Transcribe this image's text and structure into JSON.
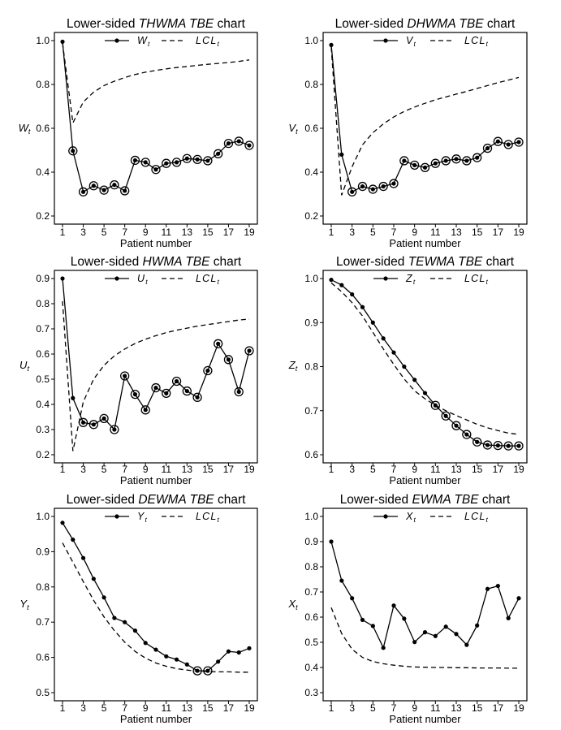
{
  "chart_data": [
    {
      "type": "line",
      "title_prefix": "Lower-sided ",
      "title_italic": "THWMA TBE",
      "title_suffix": " chart",
      "ylabel": "W",
      "ylabel_sub": "t",
      "xlabel": "Patient number",
      "xlim": [
        1,
        19
      ],
      "ylim": [
        0.2,
        1.0
      ],
      "yticks": [
        0.2,
        0.4,
        0.6,
        0.8,
        1.0
      ],
      "ytick_labels": [
        "0.2",
        "0.4",
        "0.6",
        "0.8",
        "1.0"
      ],
      "xticks": [
        1,
        3,
        5,
        7,
        9,
        11,
        13,
        15,
        17,
        19
      ],
      "xtick_labels": [
        "1",
        "3",
        "5",
        "7",
        "9",
        "11",
        "13",
        "15",
        "17",
        "19"
      ],
      "legend": {
        "stat_label": "W",
        "stat_sub": "t",
        "limit_label": "LCL",
        "limit_sub": "t"
      },
      "x": [
        1,
        2,
        3,
        4,
        5,
        6,
        7,
        8,
        9,
        10,
        11,
        12,
        13,
        14,
        15,
        16,
        17,
        18,
        19
      ],
      "statistic": [
        0.995,
        0.497,
        0.31,
        0.338,
        0.318,
        0.342,
        0.315,
        0.454,
        0.445,
        0.412,
        0.44,
        0.445,
        0.462,
        0.458,
        0.452,
        0.484,
        0.531,
        0.541,
        0.522
      ],
      "lcl": [
        0.99,
        0.625,
        0.72,
        0.765,
        0.795,
        0.815,
        0.832,
        0.845,
        0.856,
        0.864,
        0.871,
        0.877,
        0.882,
        0.887,
        0.892,
        0.896,
        0.9,
        0.905,
        0.912
      ],
      "signals": [
        2,
        3,
        4,
        5,
        6,
        7,
        8,
        9,
        10,
        11,
        12,
        13,
        14,
        15,
        16,
        17,
        18,
        19
      ]
    },
    {
      "type": "line",
      "title_prefix": "Lower-sided ",
      "title_italic": "DHWMA TBE",
      "title_suffix": " chart",
      "ylabel": "V",
      "ylabel_sub": "t",
      "xlabel": "Patient number",
      "xlim": [
        1,
        19
      ],
      "ylim": [
        0.2,
        1.0
      ],
      "yticks": [
        0.2,
        0.4,
        0.6,
        0.8,
        1.0
      ],
      "ytick_labels": [
        "0.2",
        "0.4",
        "0.6",
        "0.8",
        "1.0"
      ],
      "xticks": [
        1,
        3,
        5,
        7,
        9,
        11,
        13,
        15,
        17,
        19
      ],
      "xtick_labels": [
        "1",
        "3",
        "5",
        "7",
        "9",
        "11",
        "13",
        "15",
        "17",
        "19"
      ],
      "legend": {
        "stat_label": "V",
        "stat_sub": "t",
        "limit_label": "LCL",
        "limit_sub": "t"
      },
      "x": [
        1,
        2,
        3,
        4,
        5,
        6,
        7,
        8,
        9,
        10,
        11,
        12,
        13,
        14,
        15,
        16,
        17,
        18,
        19
      ],
      "statistic": [
        0.98,
        0.48,
        0.31,
        0.335,
        0.322,
        0.335,
        0.348,
        0.452,
        0.432,
        0.421,
        0.44,
        0.452,
        0.46,
        0.452,
        0.466,
        0.509,
        0.54,
        0.526,
        0.537
      ],
      "lcl": [
        0.97,
        0.295,
        0.425,
        0.525,
        0.58,
        0.62,
        0.652,
        0.677,
        0.697,
        0.714,
        0.73,
        0.743,
        0.756,
        0.768,
        0.782,
        0.795,
        0.808,
        0.82,
        0.832
      ],
      "signals": [
        3,
        4,
        5,
        6,
        7,
        8,
        9,
        10,
        11,
        12,
        13,
        14,
        15,
        16,
        17,
        18,
        19
      ]
    },
    {
      "type": "line",
      "title_prefix": "Lower-sided ",
      "title_italic": "HWMA TBE",
      "title_suffix": " chart",
      "ylabel": "U",
      "ylabel_sub": "t",
      "xlabel": "Patient number",
      "xlim": [
        1,
        19
      ],
      "ylim": [
        0.2,
        0.9
      ],
      "yticks": [
        0.2,
        0.3,
        0.4,
        0.5,
        0.6,
        0.7,
        0.8,
        0.9
      ],
      "ytick_labels": [
        "0.2",
        "0.3",
        "0.4",
        "0.5",
        "0.6",
        "0.7",
        "0.8",
        "0.9"
      ],
      "xticks": [
        1,
        3,
        5,
        7,
        9,
        11,
        13,
        15,
        17,
        19
      ],
      "xtick_labels": [
        "1",
        "3",
        "5",
        "7",
        "9",
        "11",
        "13",
        "15",
        "17",
        "19"
      ],
      "legend": {
        "stat_label": "U",
        "stat_sub": "t",
        "limit_label": "LCL",
        "limit_sub": "t"
      },
      "x": [
        1,
        2,
        3,
        4,
        5,
        6,
        7,
        8,
        9,
        10,
        11,
        12,
        13,
        14,
        15,
        16,
        17,
        18,
        19
      ],
      "statistic": [
        0.9,
        0.425,
        0.328,
        0.32,
        0.344,
        0.3,
        0.513,
        0.44,
        0.378,
        0.466,
        0.444,
        0.492,
        0.453,
        0.428,
        0.534,
        0.641,
        0.578,
        0.45,
        0.613
      ],
      "lcl": [
        0.81,
        0.215,
        0.41,
        0.5,
        0.555,
        0.593,
        0.62,
        0.642,
        0.659,
        0.673,
        0.685,
        0.695,
        0.703,
        0.711,
        0.717,
        0.723,
        0.729,
        0.735,
        0.739
      ],
      "signals": [
        3,
        4,
        5,
        6,
        7,
        8,
        9,
        10,
        11,
        12,
        13,
        14,
        15,
        16,
        17,
        18,
        19
      ]
    },
    {
      "type": "line",
      "title_prefix": "Lower-sided ",
      "title_italic": "TEWMA TBE",
      "title_suffix": " chart",
      "ylabel": "Z",
      "ylabel_sub": "t",
      "xlabel": "Patient number",
      "xlim": [
        1,
        19
      ],
      "ylim": [
        0.6,
        1.0
      ],
      "yticks": [
        0.6,
        0.7,
        0.8,
        0.9,
        1.0
      ],
      "ytick_labels": [
        "0.6",
        "0.7",
        "0.8",
        "0.9",
        "1.0"
      ],
      "xticks": [
        1,
        3,
        5,
        7,
        9,
        11,
        13,
        15,
        17,
        19
      ],
      "xtick_labels": [
        "1",
        "3",
        "5",
        "7",
        "9",
        "11",
        "13",
        "15",
        "17",
        "19"
      ],
      "legend": {
        "stat_label": "Z",
        "stat_sub": "t",
        "limit_label": "LCL",
        "limit_sub": "t"
      },
      "x": [
        1,
        2,
        3,
        4,
        5,
        6,
        7,
        8,
        9,
        10,
        11,
        12,
        13,
        14,
        15,
        16,
        17,
        18,
        19
      ],
      "statistic": [
        0.997,
        0.985,
        0.964,
        0.935,
        0.9,
        0.864,
        0.832,
        0.8,
        0.77,
        0.74,
        0.712,
        0.688,
        0.666,
        0.646,
        0.629,
        0.622,
        0.621,
        0.62,
        0.62
      ],
      "lcl": [
        0.99,
        0.97,
        0.945,
        0.915,
        0.878,
        0.84,
        0.805,
        0.772,
        0.745,
        0.727,
        0.712,
        0.7,
        0.689,
        0.679,
        0.669,
        0.661,
        0.655,
        0.649,
        0.646
      ],
      "signals": [
        11,
        12,
        13,
        14,
        15,
        16,
        17,
        18,
        19
      ]
    },
    {
      "type": "line",
      "title_prefix": "Lower-sided ",
      "title_italic": "DEWMA TBE",
      "title_suffix": " chart",
      "ylabel": "Y",
      "ylabel_sub": "t",
      "xlabel": "Patient number",
      "xlim": [
        1,
        19
      ],
      "ylim": [
        0.5,
        1.0
      ],
      "yticks": [
        0.5,
        0.6,
        0.7,
        0.8,
        0.9,
        1.0
      ],
      "ytick_labels": [
        "0.5",
        "0.6",
        "0.7",
        "0.8",
        "0.9",
        "1.0"
      ],
      "xticks": [
        1,
        3,
        5,
        7,
        9,
        11,
        13,
        15,
        17,
        19
      ],
      "xtick_labels": [
        "1",
        "3",
        "5",
        "7",
        "9",
        "11",
        "13",
        "15",
        "17",
        "19"
      ],
      "legend": {
        "stat_label": "Y",
        "stat_sub": "t",
        "limit_label": "LCL",
        "limit_sub": "t"
      },
      "x": [
        1,
        2,
        3,
        4,
        5,
        6,
        7,
        8,
        9,
        10,
        11,
        12,
        13,
        14,
        15,
        16,
        17,
        18,
        19
      ],
      "statistic": [
        0.982,
        0.934,
        0.882,
        0.823,
        0.77,
        0.712,
        0.7,
        0.676,
        0.641,
        0.622,
        0.603,
        0.594,
        0.58,
        0.562,
        0.562,
        0.588,
        0.617,
        0.614,
        0.626
      ],
      "lcl": [
        0.925,
        0.87,
        0.815,
        0.762,
        0.715,
        0.676,
        0.643,
        0.617,
        0.598,
        0.584,
        0.575,
        0.568,
        0.564,
        0.561,
        0.56,
        0.559,
        0.559,
        0.558,
        0.558
      ],
      "signals": [
        14,
        15
      ]
    },
    {
      "type": "line",
      "title_prefix": "Lower-sided ",
      "title_italic": "EWMA TBE",
      "title_suffix": " chart",
      "ylabel": "X",
      "ylabel_sub": "t",
      "xlabel": "Patient number",
      "xlim": [
        1,
        19
      ],
      "ylim": [
        0.3,
        1.0
      ],
      "yticks": [
        0.3,
        0.4,
        0.5,
        0.6,
        0.7,
        0.8,
        0.9,
        1.0
      ],
      "ytick_labels": [
        "0.3",
        "0.4",
        "0.5",
        "0.6",
        "0.7",
        "0.8",
        "0.9",
        "1.0"
      ],
      "xticks": [
        1,
        3,
        5,
        7,
        9,
        11,
        13,
        15,
        17,
        19
      ],
      "xtick_labels": [
        "1",
        "3",
        "5",
        "7",
        "9",
        "11",
        "13",
        "15",
        "17",
        "19"
      ],
      "legend": {
        "stat_label": "X",
        "stat_sub": "t",
        "limit_label": "LCL",
        "limit_sub": "t"
      },
      "x": [
        1,
        2,
        3,
        4,
        5,
        6,
        7,
        8,
        9,
        10,
        11,
        12,
        13,
        14,
        15,
        16,
        17,
        18,
        19
      ],
      "statistic": [
        0.9,
        0.745,
        0.675,
        0.589,
        0.565,
        0.478,
        0.646,
        0.594,
        0.501,
        0.54,
        0.525,
        0.562,
        0.533,
        0.49,
        0.567,
        0.712,
        0.724,
        0.596,
        0.675
      ],
      "lcl": [
        0.638,
        0.535,
        0.472,
        0.44,
        0.424,
        0.415,
        0.409,
        0.405,
        0.402,
        0.401,
        0.4,
        0.4,
        0.399,
        0.399,
        0.398,
        0.398,
        0.398,
        0.397,
        0.397
      ],
      "signals": []
    }
  ]
}
